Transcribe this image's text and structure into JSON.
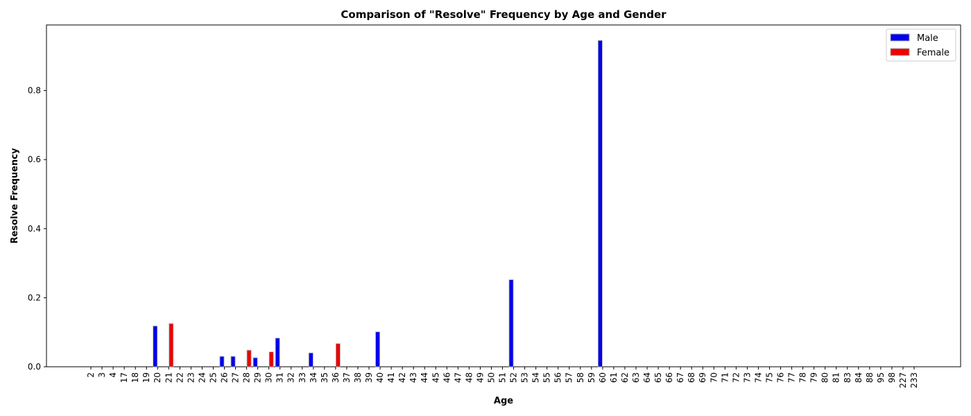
{
  "chart_data": {
    "type": "bar",
    "title": "Comparison of \"Resolve\" Frequency by Age and Gender",
    "xlabel": "Age",
    "ylabel": "Resolve Frequency",
    "categories": [
      "2",
      "3",
      "4",
      "17",
      "18",
      "19",
      "20",
      "21",
      "22",
      "23",
      "24",
      "25",
      "26",
      "27",
      "28",
      "29",
      "30",
      "31",
      "32",
      "33",
      "34",
      "35",
      "36",
      "37",
      "38",
      "39",
      "40",
      "41",
      "42",
      "43",
      "44",
      "45",
      "46",
      "47",
      "48",
      "49",
      "50",
      "51",
      "52",
      "53",
      "54",
      "55",
      "56",
      "57",
      "58",
      "59",
      "60",
      "61",
      "62",
      "63",
      "64",
      "65",
      "66",
      "67",
      "68",
      "69",
      "70",
      "71",
      "72",
      "73",
      "74",
      "75",
      "76",
      "77",
      "78",
      "79",
      "80",
      "81",
      "83",
      "84",
      "88",
      "95",
      "98",
      "227",
      "233"
    ],
    "series": [
      {
        "name": "Male",
        "color": "#0000ee",
        "values": [
          0,
          0,
          0,
          0,
          0,
          0,
          0.118,
          0,
          0,
          0,
          0,
          0,
          0.03,
          0.03,
          0,
          0.026,
          0,
          0.083,
          0,
          0,
          0.04,
          0,
          0,
          0,
          0,
          0,
          0.101,
          0,
          0,
          0,
          0,
          0,
          0,
          0,
          0,
          0,
          0,
          0,
          0.252,
          0,
          0,
          0,
          0,
          0,
          0,
          0,
          0.945,
          0,
          0,
          0,
          0,
          0,
          0,
          0,
          0,
          0,
          0,
          0,
          0,
          0,
          0,
          0,
          0,
          0,
          0,
          0,
          0,
          0,
          0,
          0,
          0,
          0,
          0,
          0,
          0
        ]
      },
      {
        "name": "Female",
        "color": "#ee0000",
        "values": [
          0,
          0,
          0,
          0,
          0,
          0,
          0,
          0.125,
          0,
          0,
          0,
          0,
          0,
          0,
          0.048,
          0,
          0.043,
          0,
          0,
          0,
          0,
          0,
          0.067,
          0,
          0,
          0,
          0,
          0,
          0,
          0,
          0,
          0,
          0,
          0,
          0,
          0,
          0,
          0,
          0,
          0,
          0,
          0,
          0,
          0,
          0,
          0,
          0,
          0,
          0,
          0,
          0,
          0,
          0,
          0,
          0,
          0,
          0,
          0,
          0,
          0,
          0,
          0,
          0,
          0,
          0,
          0,
          0,
          0,
          0,
          0,
          0,
          0,
          0,
          0,
          0
        ]
      }
    ],
    "ylim": [
      0,
      0.99
    ],
    "yticks": [
      "0.0",
      "0.2",
      "0.4",
      "0.6",
      "0.8"
    ],
    "legend_position": "top-right",
    "grid": false
  }
}
